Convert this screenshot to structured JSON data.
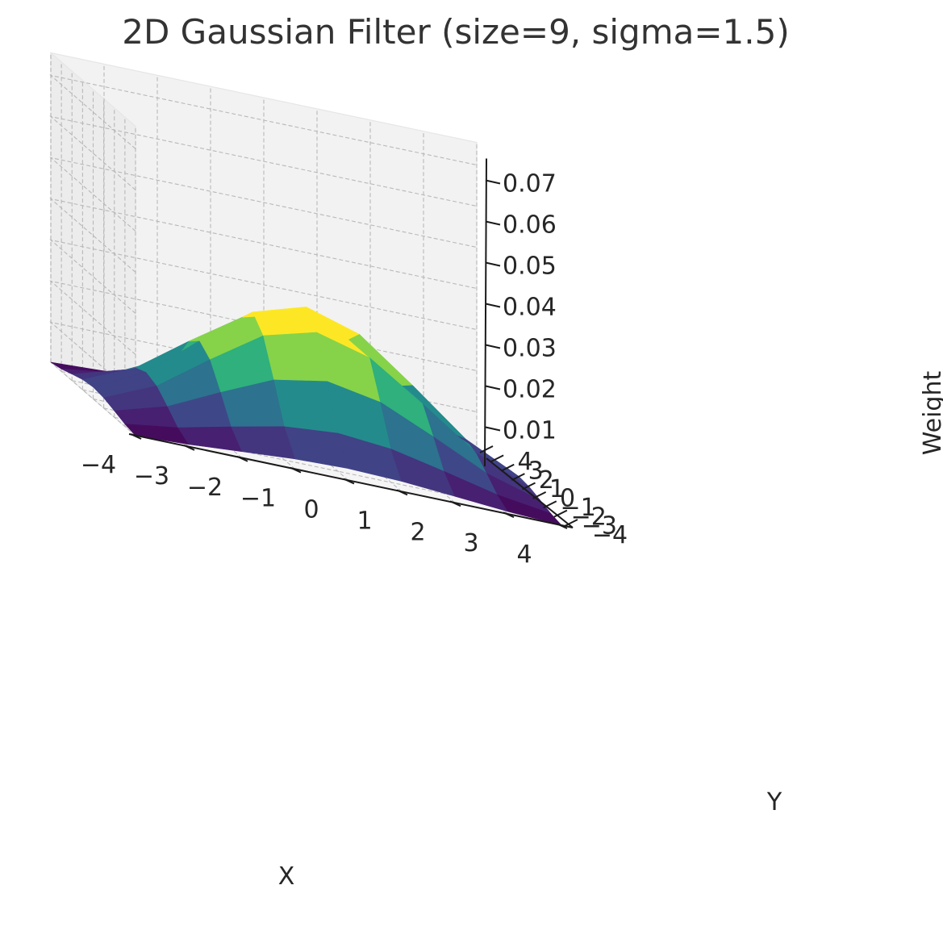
{
  "chart_data": {
    "type": "surface3d",
    "title": "2D Gaussian Filter (size=9, sigma=1.5)",
    "xlabel": "X",
    "ylabel": "Y",
    "zlabel": "Weight",
    "colormap": "viridis",
    "x": [
      -4,
      -3,
      -2,
      -1,
      0,
      1,
      2,
      3,
      4
    ],
    "y": [
      -4,
      -3,
      -2,
      -1,
      0,
      1,
      2,
      3,
      4
    ],
    "sigma": 1.5,
    "xticks": [
      "−4",
      "−3",
      "−2",
      "−1",
      "0",
      "1",
      "2",
      "3",
      "4"
    ],
    "yticks": [
      "−4",
      "−3",
      "−2",
      "−1",
      "0",
      "1",
      "2",
      "3",
      "4"
    ],
    "zticks": [
      "0.01",
      "0.02",
      "0.03",
      "0.04",
      "0.05",
      "0.06",
      "0.07"
    ],
    "zvalues": [
      0.01,
      0.02,
      0.03,
      0.04,
      0.05,
      0.06,
      0.07
    ],
    "xlim": [
      -4,
      4
    ],
    "ylim": [
      -4,
      4
    ],
    "zlim": [
      0.0003,
      0.0755
    ],
    "z": [
      [
        0.0003,
        0.0009,
        0.00188,
        0.0028,
        0.00318,
        0.0028,
        0.00188,
        0.0009,
        0.0003
      ],
      [
        0.0009,
        0.00271,
        0.00566,
        0.00842,
        0.00955,
        0.00842,
        0.00566,
        0.00271,
        0.0009
      ],
      [
        0.00188,
        0.00566,
        0.01181,
        0.01755,
        0.0199,
        0.01755,
        0.01181,
        0.00566,
        0.00188
      ],
      [
        0.0028,
        0.00842,
        0.01755,
        0.02609,
        0.02958,
        0.02609,
        0.01755,
        0.00842,
        0.0028
      ],
      [
        0.00318,
        0.00955,
        0.0199,
        0.02958,
        0.03354,
        0.02958,
        0.0199,
        0.00955,
        0.00318
      ],
      [
        0.0028,
        0.00842,
        0.01755,
        0.02609,
        0.02958,
        0.02609,
        0.01755,
        0.00842,
        0.0028
      ],
      [
        0.00188,
        0.00566,
        0.01181,
        0.01755,
        0.0199,
        0.01755,
        0.01181,
        0.00566,
        0.00188
      ],
      [
        0.0009,
        0.00271,
        0.00566,
        0.00842,
        0.00955,
        0.00842,
        0.00566,
        0.00271,
        0.0009
      ],
      [
        0.0003,
        0.0009,
        0.00188,
        0.0028,
        0.00318,
        0.0028,
        0.00188,
        0.0009,
        0.0003
      ]
    ],
    "grid": true,
    "legend": "none"
  }
}
